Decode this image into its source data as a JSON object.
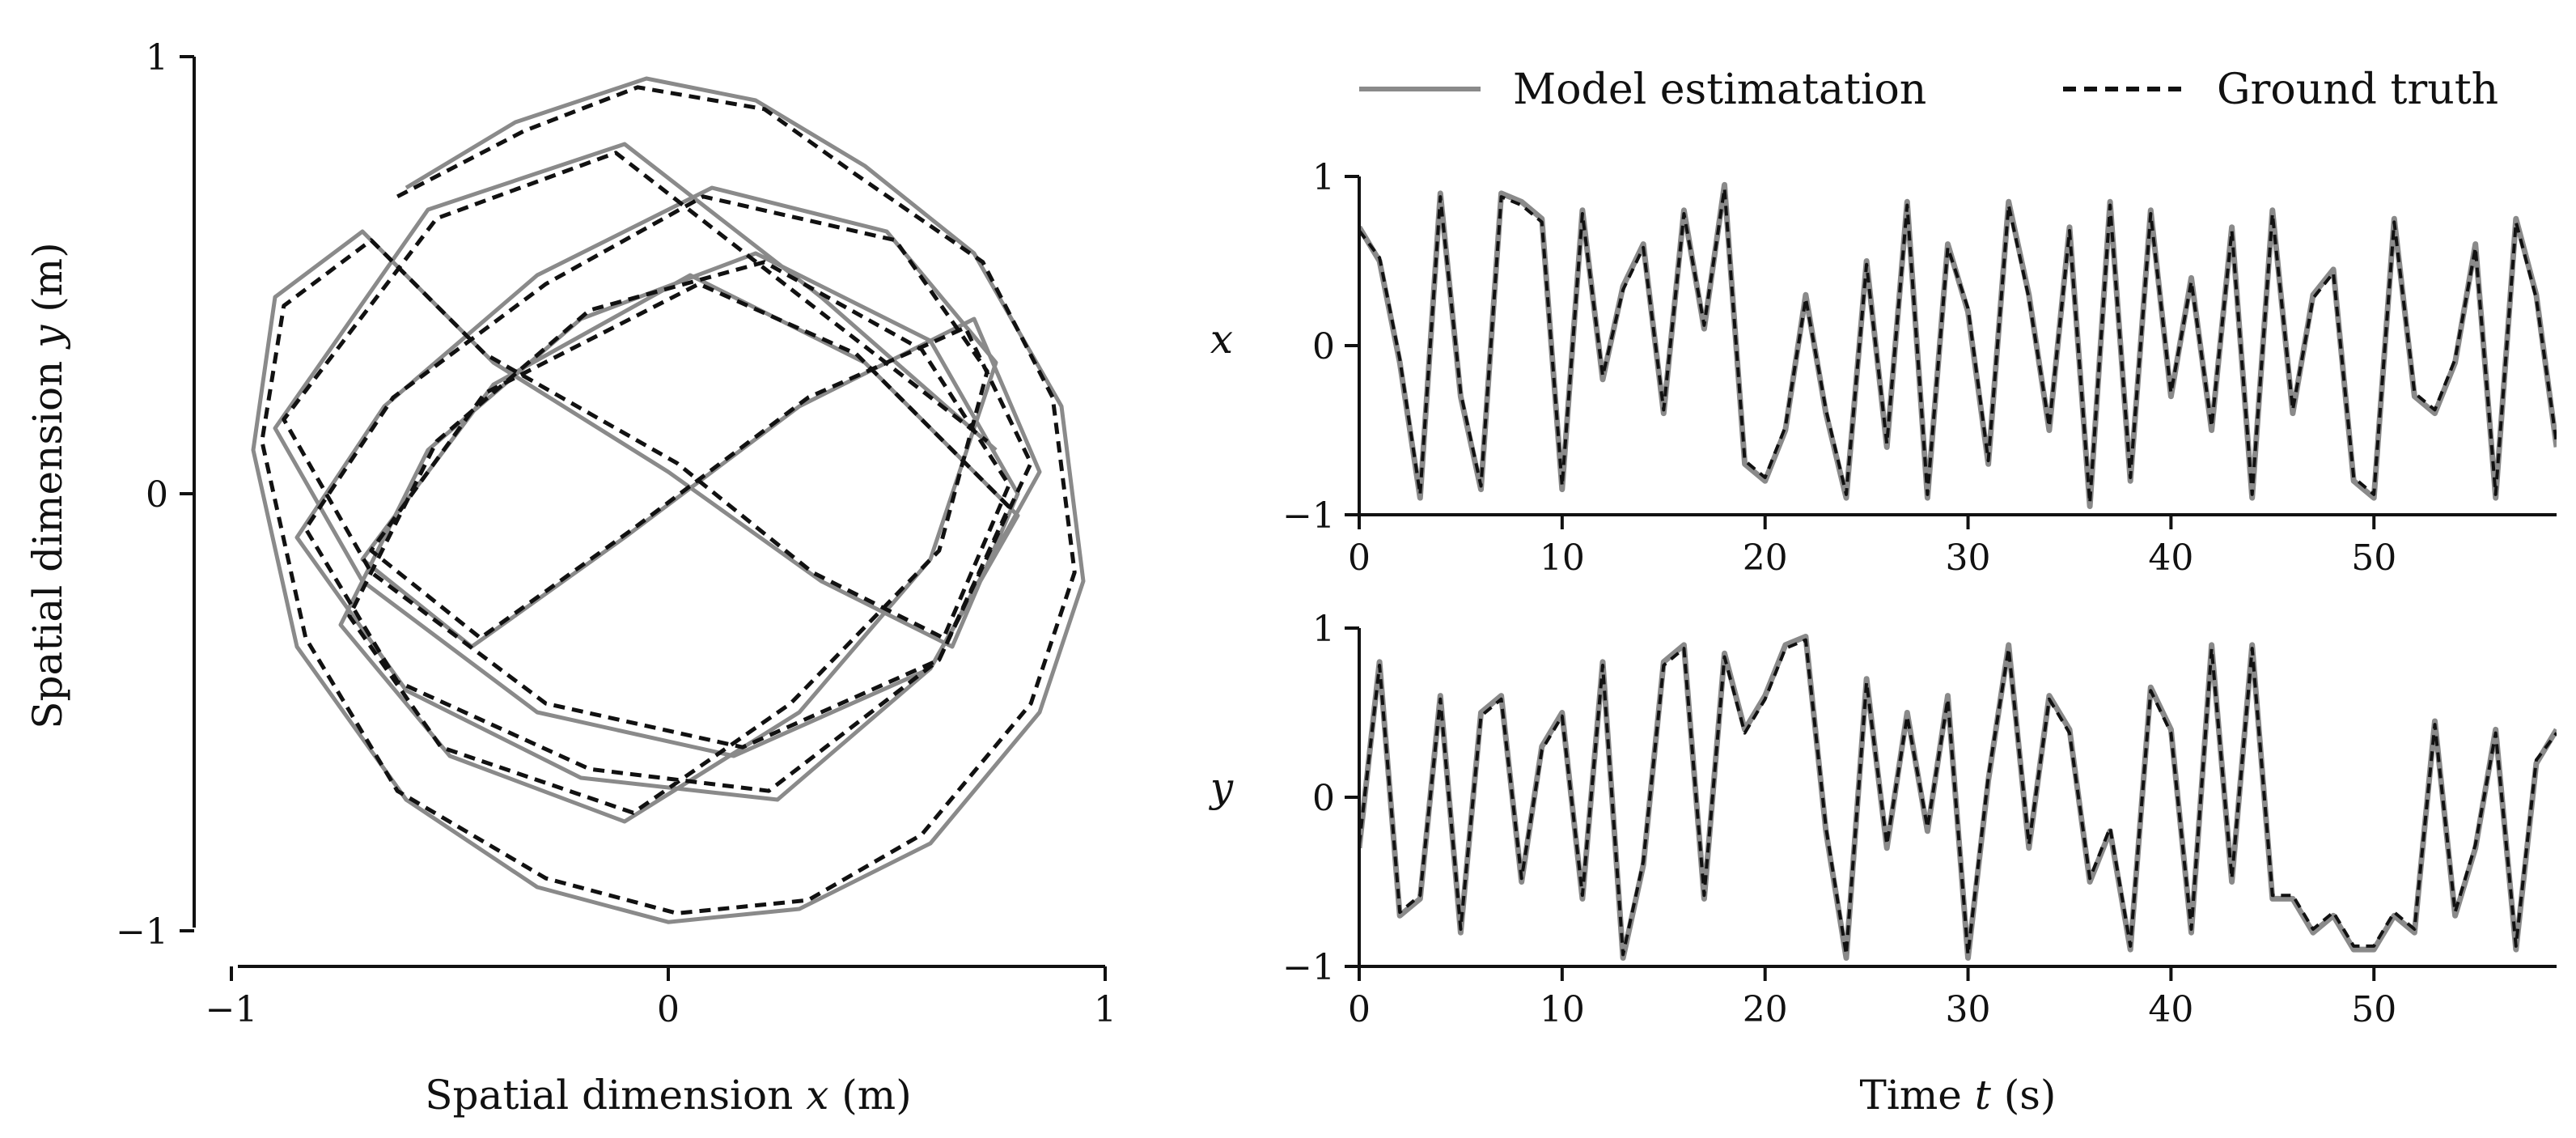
{
  "colors": {
    "estimate": "#8a8a8a",
    "truth": "#111111",
    "axis": "#111111",
    "background": "#ffffff"
  },
  "legend": {
    "estimate_label": "Model estimatation",
    "truth_label": "Ground truth",
    "placement": "top"
  },
  "chart_data": [
    {
      "type": "line",
      "panel": "trajectory",
      "xlabel_pre": "Spatial dimension ",
      "xlabel_var": "x",
      "xlabel_post": " (m)",
      "ylabel_pre": "Spatial dimension ",
      "ylabel_var": "y",
      "ylabel_post": " (m)",
      "xlim": [
        -1,
        1
      ],
      "ylim": [
        -1,
        1
      ],
      "xticks": [
        "−1",
        "0",
        "1"
      ],
      "yticks": [
        "−1",
        "0",
        "1"
      ],
      "grid": false,
      "series": [
        {
          "name": "Model estimatation",
          "x": [
            -0.6,
            -0.35,
            -0.05,
            0.2,
            0.45,
            0.7,
            0.9,
            0.95,
            0.85,
            0.6,
            0.3,
            0.0,
            -0.3,
            -0.6,
            -0.85,
            -0.95,
            -0.9,
            -0.7,
            -0.4,
            0.0,
            0.35,
            0.65,
            0.8,
            0.6,
            0.2,
            -0.2,
            -0.55,
            -0.75,
            -0.5,
            -0.1,
            0.3,
            0.6,
            0.75,
            0.5,
            0.1,
            -0.3,
            -0.65,
            -0.85,
            -0.6,
            -0.2,
            0.25,
            0.6,
            0.85,
            0.7,
            0.3,
            -0.1,
            -0.45,
            -0.7,
            -0.4,
            0.05,
            0.45,
            0.8,
            0.6,
            0.15,
            -0.3,
            -0.7,
            -0.9,
            -0.55,
            -0.1,
            0.35,
            0.75
          ],
          "y": [
            0.7,
            0.85,
            0.95,
            0.9,
            0.75,
            0.55,
            0.2,
            -0.2,
            -0.5,
            -0.8,
            -0.95,
            -0.98,
            -0.9,
            -0.7,
            -0.35,
            0.1,
            0.45,
            0.6,
            0.3,
            0.05,
            -0.2,
            -0.35,
            0.0,
            0.35,
            0.55,
            0.4,
            0.1,
            -0.3,
            -0.6,
            -0.75,
            -0.5,
            -0.15,
            0.3,
            0.6,
            0.7,
            0.5,
            0.2,
            -0.1,
            -0.45,
            -0.65,
            -0.7,
            -0.4,
            0.05,
            0.4,
            0.2,
            -0.1,
            -0.35,
            -0.15,
            0.25,
            0.5,
            0.3,
            -0.05,
            -0.4,
            -0.6,
            -0.5,
            -0.2,
            0.15,
            0.65,
            0.8,
            0.45,
            0.1
          ]
        },
        {
          "name": "Ground truth",
          "x": [
            -0.62,
            -0.33,
            -0.07,
            0.22,
            0.43,
            0.72,
            0.88,
            0.93,
            0.83,
            0.58,
            0.32,
            0.02,
            -0.28,
            -0.62,
            -0.83,
            -0.93,
            -0.88,
            -0.68,
            -0.42,
            0.02,
            0.33,
            0.63,
            0.78,
            0.58,
            0.22,
            -0.18,
            -0.53,
            -0.73,
            -0.52,
            -0.08,
            0.28,
            0.62,
            0.73,
            0.52,
            0.08,
            -0.28,
            -0.63,
            -0.83,
            -0.62,
            -0.18,
            0.23,
            0.62,
            0.83,
            0.68,
            0.32,
            -0.08,
            -0.43,
            -0.68,
            -0.42,
            0.07,
            0.43,
            0.78,
            0.62,
            0.17,
            -0.28,
            -0.68,
            -0.88,
            -0.53,
            -0.12,
            0.33,
            0.73
          ],
          "y": [
            0.68,
            0.83,
            0.93,
            0.88,
            0.73,
            0.53,
            0.22,
            -0.18,
            -0.48,
            -0.78,
            -0.93,
            -0.96,
            -0.88,
            -0.68,
            -0.33,
            0.12,
            0.43,
            0.58,
            0.32,
            0.07,
            -0.18,
            -0.33,
            0.02,
            0.33,
            0.53,
            0.42,
            0.12,
            -0.28,
            -0.58,
            -0.73,
            -0.48,
            -0.13,
            0.28,
            0.58,
            0.68,
            0.48,
            0.22,
            -0.08,
            -0.43,
            -0.63,
            -0.68,
            -0.38,
            0.07,
            0.38,
            0.22,
            -0.08,
            -0.33,
            -0.13,
            0.23,
            0.48,
            0.32,
            -0.03,
            -0.38,
            -0.58,
            -0.48,
            -0.18,
            0.17,
            0.63,
            0.78,
            0.43,
            0.12
          ]
        }
      ]
    },
    {
      "type": "line",
      "panel": "x-time",
      "ylabel": "x",
      "xlim": [
        0,
        59
      ],
      "ylim": [
        -1,
        1
      ],
      "xticks": [
        "0",
        "10",
        "20",
        "30",
        "40",
        "50"
      ],
      "yticks": [
        "−1",
        "0",
        "1"
      ],
      "x": [
        0,
        1,
        2,
        3,
        4,
        5,
        6,
        7,
        8,
        9,
        10,
        11,
        12,
        13,
        14,
        15,
        16,
        17,
        18,
        19,
        20,
        21,
        22,
        23,
        24,
        25,
        26,
        27,
        28,
        29,
        30,
        31,
        32,
        33,
        34,
        35,
        36,
        37,
        38,
        39,
        40,
        41,
        42,
        43,
        44,
        45,
        46,
        47,
        48,
        49,
        50,
        51,
        52,
        53,
        54,
        55,
        56,
        57,
        58,
        59
      ],
      "series": [
        {
          "name": "Model estimatation",
          "values": [
            0.7,
            0.5,
            -0.1,
            -0.9,
            0.9,
            -0.3,
            -0.85,
            0.9,
            0.85,
            0.75,
            -0.85,
            0.8,
            -0.2,
            0.35,
            0.6,
            -0.4,
            0.8,
            0.1,
            0.95,
            -0.7,
            -0.8,
            -0.5,
            0.3,
            -0.4,
            -0.9,
            0.5,
            -0.6,
            0.85,
            -0.9,
            0.6,
            0.2,
            -0.7,
            0.85,
            0.3,
            -0.5,
            0.7,
            -0.95,
            0.85,
            -0.8,
            0.8,
            -0.3,
            0.4,
            -0.5,
            0.7,
            -0.9,
            0.8,
            -0.4,
            0.3,
            0.45,
            -0.8,
            -0.9,
            0.75,
            -0.3,
            -0.4,
            -0.1,
            0.6,
            -0.9,
            0.75,
            0.3,
            -0.6
          ]
        },
        {
          "name": "Ground truth",
          "values": [
            0.68,
            0.52,
            -0.08,
            -0.88,
            0.88,
            -0.28,
            -0.83,
            0.88,
            0.83,
            0.73,
            -0.83,
            0.78,
            -0.18,
            0.33,
            0.58,
            -0.38,
            0.78,
            0.12,
            0.93,
            -0.68,
            -0.78,
            -0.48,
            0.28,
            -0.38,
            -0.88,
            0.48,
            -0.58,
            0.83,
            -0.88,
            0.58,
            0.22,
            -0.68,
            0.83,
            0.28,
            -0.48,
            0.68,
            -0.93,
            0.83,
            -0.78,
            0.78,
            -0.28,
            0.38,
            -0.48,
            0.68,
            -0.88,
            0.78,
            -0.38,
            0.28,
            0.43,
            -0.78,
            -0.88,
            0.73,
            -0.28,
            -0.38,
            -0.08,
            0.58,
            -0.88,
            0.73,
            0.28,
            -0.58
          ]
        }
      ]
    },
    {
      "type": "line",
      "panel": "y-time",
      "ylabel": "y",
      "xlabel_pre": "Time ",
      "xlabel_var": "t",
      "xlabel_post": " (s)",
      "xlim": [
        0,
        59
      ],
      "ylim": [
        -1,
        1
      ],
      "xticks": [
        "0",
        "10",
        "20",
        "30",
        "40",
        "50"
      ],
      "yticks": [
        "−1",
        "0",
        "1"
      ],
      "x": [
        0,
        1,
        2,
        3,
        4,
        5,
        6,
        7,
        8,
        9,
        10,
        11,
        12,
        13,
        14,
        15,
        16,
        17,
        18,
        19,
        20,
        21,
        22,
        23,
        24,
        25,
        26,
        27,
        28,
        29,
        30,
        31,
        32,
        33,
        34,
        35,
        36,
        37,
        38,
        39,
        40,
        41,
        42,
        43,
        44,
        45,
        46,
        47,
        48,
        49,
        50,
        51,
        52,
        53,
        54,
        55,
        56,
        57,
        58,
        59
      ],
      "series": [
        {
          "name": "Model estimatation",
          "values": [
            -0.3,
            0.8,
            -0.7,
            -0.6,
            0.6,
            -0.8,
            0.5,
            0.6,
            -0.5,
            0.3,
            0.5,
            -0.6,
            0.8,
            -0.95,
            -0.4,
            0.8,
            0.9,
            -0.6,
            0.85,
            0.4,
            0.6,
            0.9,
            0.95,
            -0.2,
            -0.95,
            0.7,
            -0.3,
            0.5,
            -0.2,
            0.6,
            -0.95,
            0.1,
            0.9,
            -0.3,
            0.6,
            0.4,
            -0.5,
            -0.2,
            -0.9,
            0.65,
            0.4,
            -0.8,
            0.9,
            -0.5,
            0.9,
            -0.6,
            -0.6,
            -0.8,
            -0.7,
            -0.9,
            -0.9,
            -0.7,
            -0.8,
            0.45,
            -0.7,
            -0.3,
            0.4,
            -0.9,
            0.2,
            0.4
          ]
        },
        {
          "name": "Ground truth",
          "values": [
            -0.28,
            0.78,
            -0.68,
            -0.58,
            0.58,
            -0.78,
            0.48,
            0.58,
            -0.48,
            0.28,
            0.48,
            -0.58,
            0.78,
            -0.93,
            -0.38,
            0.78,
            0.88,
            -0.58,
            0.83,
            0.38,
            0.58,
            0.88,
            0.93,
            -0.18,
            -0.93,
            0.68,
            -0.28,
            0.48,
            -0.18,
            0.58,
            -0.93,
            0.12,
            0.88,
            -0.28,
            0.58,
            0.38,
            -0.48,
            -0.18,
            -0.88,
            0.63,
            0.38,
            -0.78,
            0.88,
            -0.48,
            0.88,
            -0.58,
            -0.58,
            -0.78,
            -0.68,
            -0.88,
            -0.88,
            -0.68,
            -0.78,
            0.43,
            -0.68,
            -0.28,
            0.38,
            -0.88,
            0.22,
            0.38
          ]
        }
      ]
    }
  ]
}
